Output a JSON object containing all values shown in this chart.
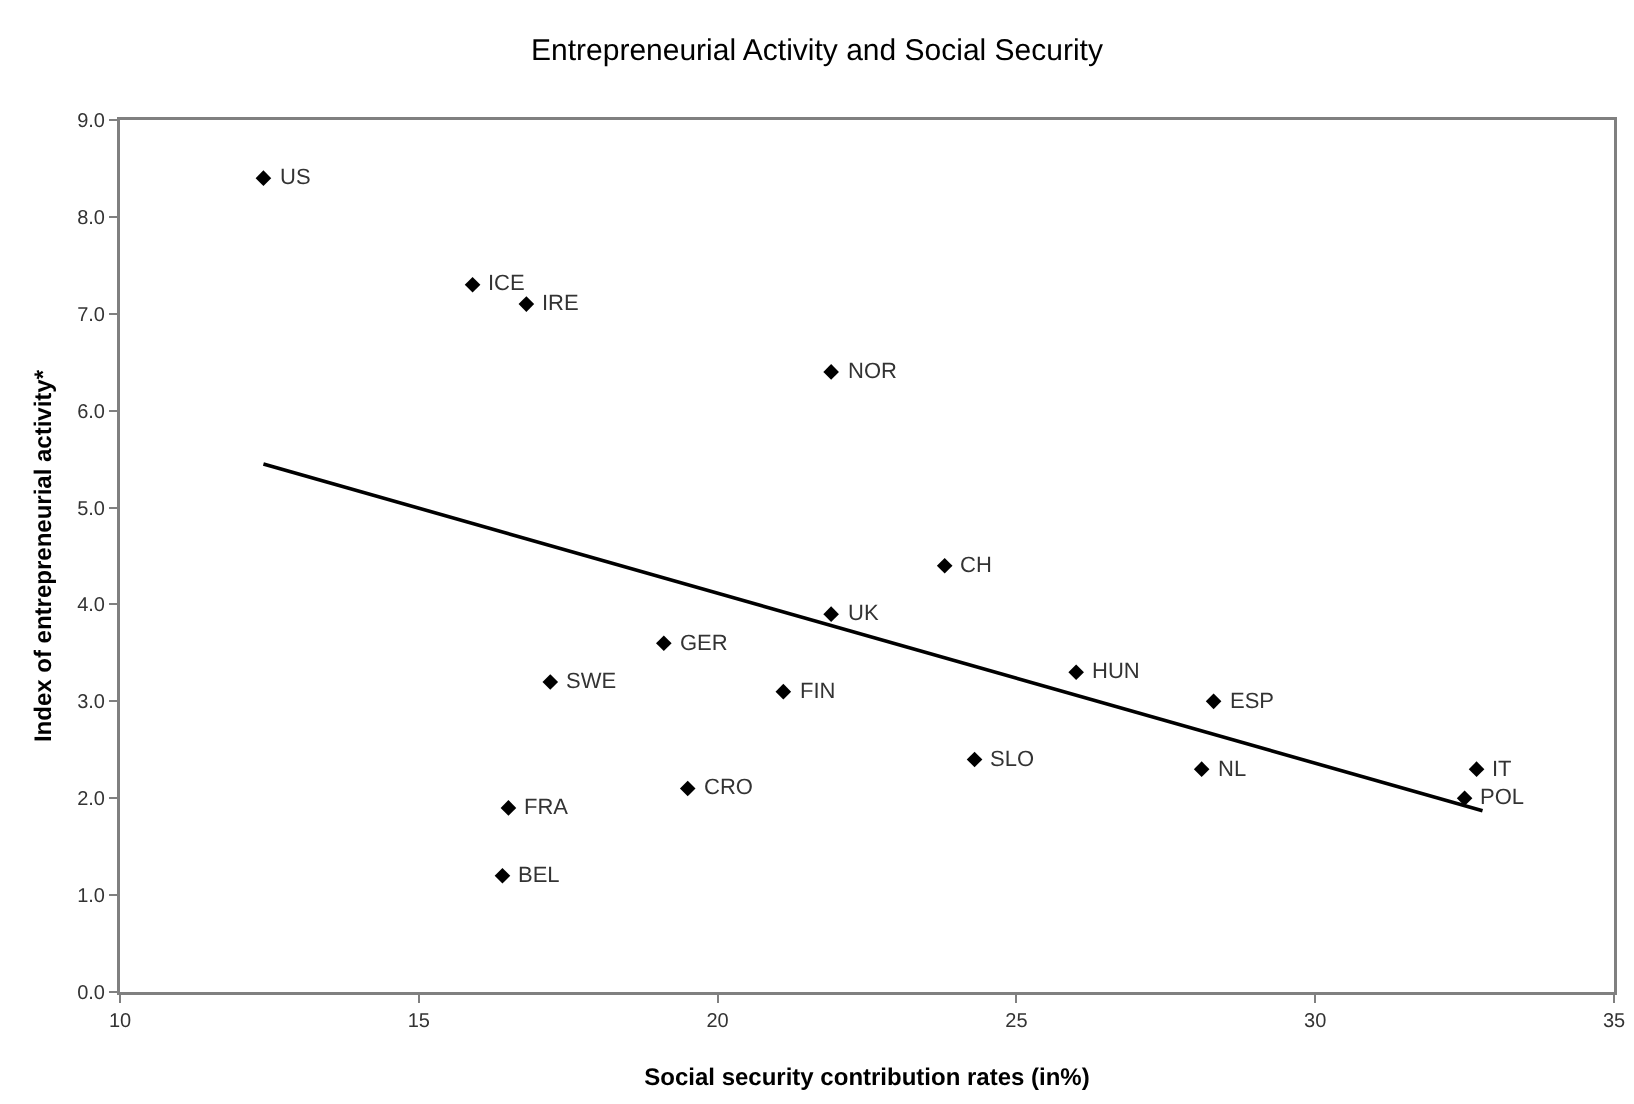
{
  "chart_data": {
    "type": "scatter",
    "title": "Entrepreneurial Activity and Social Security",
    "xlabel": "Social security contribution rates (in%)",
    "ylabel": "Index of entrepreneurial activity*",
    "marker": "diamond",
    "grid": false,
    "xlim": [
      10,
      35
    ],
    "xticks": [
      10,
      15,
      20,
      25,
      30,
      35
    ],
    "ylim": [
      0,
      9
    ],
    "yticks": [
      {
        "value": 0,
        "label": "0.0"
      },
      {
        "value": 1,
        "label": "1.0"
      },
      {
        "value": 2,
        "label": "2.0"
      },
      {
        "value": 3,
        "label": "3.0"
      },
      {
        "value": 4,
        "label": "4.0"
      },
      {
        "value": 5,
        "label": "5.0"
      },
      {
        "value": 6,
        "label": "6.0"
      },
      {
        "value": 7,
        "label": "7.0"
      },
      {
        "value": 8,
        "label": "8.0"
      },
      {
        "value": 9,
        "label": "9.0"
      }
    ],
    "series": [
      {
        "color": "#000000",
        "x": [
          12.4,
          15.9,
          16.8,
          21.9,
          23.8,
          21.9,
          19.1,
          17.2,
          21.1,
          26.0,
          28.3,
          24.3,
          28.1,
          32.7,
          32.5,
          19.5,
          16.5,
          16.4
        ],
        "values": [
          8.4,
          7.3,
          7.1,
          6.4,
          4.4,
          3.9,
          3.6,
          3.2,
          3.1,
          3.3,
          3.0,
          2.4,
          2.3,
          2.3,
          2.0,
          2.1,
          1.9,
          1.2
        ]
      },
      {
        "type": "line",
        "color": "#000000",
        "marker": "none",
        "line_style": "solid",
        "x": [
          12.4,
          32.8
        ],
        "values": [
          5.45,
          1.87
        ]
      }
    ],
    "annotations": [
      {
        "text": "US",
        "x": 12.4,
        "y": 8.4
      },
      {
        "text": "ICE",
        "x": 15.9,
        "y": 7.3
      },
      {
        "text": "IRE",
        "x": 16.8,
        "y": 7.1
      },
      {
        "text": "NOR",
        "x": 21.9,
        "y": 6.4
      },
      {
        "text": "CH",
        "x": 23.8,
        "y": 4.4
      },
      {
        "text": "UK",
        "x": 21.9,
        "y": 3.9
      },
      {
        "text": "GER",
        "x": 19.1,
        "y": 3.6
      },
      {
        "text": "SWE",
        "x": 17.2,
        "y": 3.2
      },
      {
        "text": "FIN",
        "x": 21.1,
        "y": 3.1
      },
      {
        "text": "HUN",
        "x": 26.0,
        "y": 3.3
      },
      {
        "text": "ESP",
        "x": 28.3,
        "y": 3.0
      },
      {
        "text": "SLO",
        "x": 24.3,
        "y": 2.4
      },
      {
        "text": "NL",
        "x": 28.1,
        "y": 2.3
      },
      {
        "text": "IT",
        "x": 32.7,
        "y": 2.3
      },
      {
        "text": "POL",
        "x": 32.5,
        "y": 2.0
      },
      {
        "text": "CRO",
        "x": 19.5,
        "y": 2.1
      },
      {
        "text": "FRA",
        "x": 16.5,
        "y": 1.9
      },
      {
        "text": "BEL",
        "x": 16.4,
        "y": 1.2
      }
    ]
  }
}
